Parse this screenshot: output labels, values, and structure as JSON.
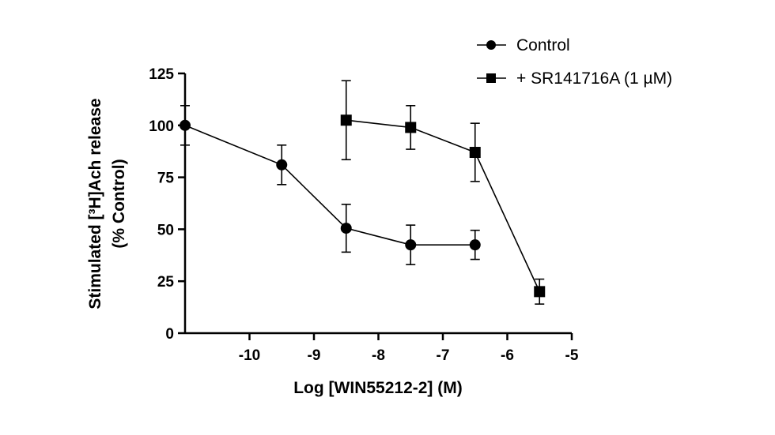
{
  "chart_data": {
    "type": "scatter",
    "xlabel": "Log [WIN55212-2] (M)",
    "ylabel_line1": "Stimulated [³H]Ach release",
    "ylabel_line2": "(% Control)",
    "xlim": [
      -11,
      -5
    ],
    "ylim": [
      0,
      125
    ],
    "x_ticks": [
      -10,
      -9,
      -8,
      -7,
      -6,
      -5
    ],
    "y_ticks": [
      0,
      25,
      50,
      75,
      100,
      125
    ],
    "x_tick_labels": [
      "-10",
      "-9",
      "-8",
      "-7",
      "-6",
      "-5"
    ],
    "y_tick_labels": [
      "0",
      "25",
      "50",
      "75",
      "100",
      "125"
    ],
    "legend_position": "top-right",
    "series": [
      {
        "name": "Control",
        "marker": "circle",
        "color": "#000000",
        "x": [
          -11,
          -9.5,
          -8.5,
          -7.5,
          -6.5
        ],
        "y": [
          100,
          81,
          50.5,
          42.5,
          42.5
        ],
        "err": [
          9.5,
          9.5,
          11.5,
          9.5,
          7
        ]
      },
      {
        "name": "+ SR141716A (1 µM)",
        "marker": "square",
        "color": "#000000",
        "x": [
          -8.5,
          -7.5,
          -6.5,
          -5.5
        ],
        "y": [
          102.5,
          99,
          87,
          20
        ],
        "err": [
          19,
          10.5,
          14,
          6
        ]
      }
    ]
  }
}
